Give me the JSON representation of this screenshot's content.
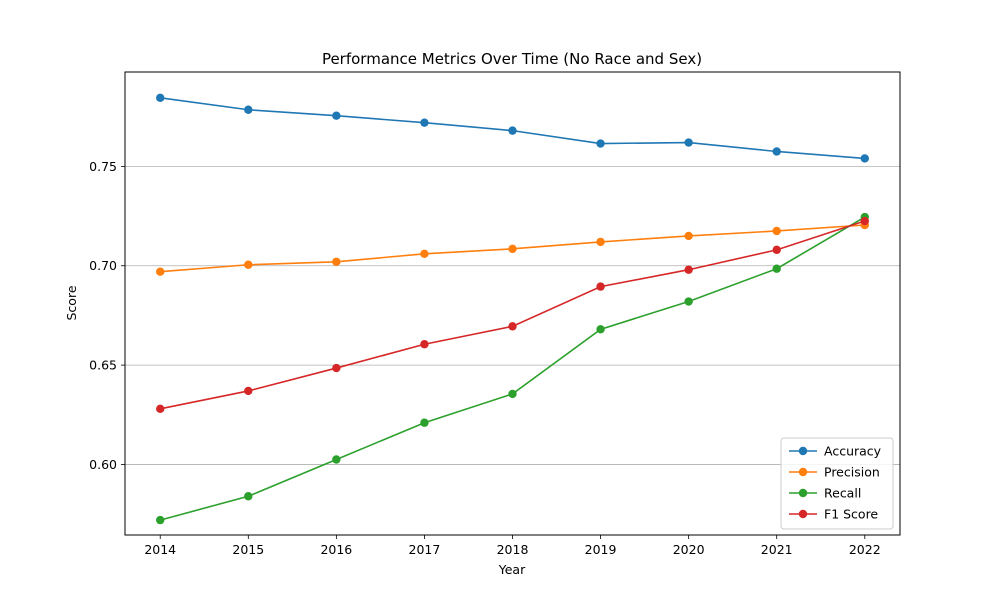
{
  "chart_data": {
    "type": "line",
    "title": "Performance Metrics Over Time (No Race and Sex)",
    "xlabel": "Year",
    "ylabel": "Score",
    "x": [
      2014,
      2015,
      2016,
      2017,
      2018,
      2019,
      2020,
      2021,
      2022
    ],
    "x_tick_labels": [
      "2014",
      "2015",
      "2016",
      "2017",
      "2018",
      "2019",
      "2020",
      "2021",
      "2022"
    ],
    "y_ticks": [
      0.6,
      0.65,
      0.7,
      0.75
    ],
    "y_tick_labels": [
      "0.60",
      "0.65",
      "0.70",
      "0.75"
    ],
    "ylim": [
      0.5645,
      0.7975
    ],
    "xlim": [
      2013.6,
      2022.4
    ],
    "grid": "y-major",
    "legend_position": "lower right",
    "series": [
      {
        "name": "Accuracy",
        "color": "#1f77b4",
        "values": [
          0.7845,
          0.7785,
          0.7755,
          0.772,
          0.768,
          0.7615,
          0.762,
          0.7575,
          0.754
        ]
      },
      {
        "name": "Precision",
        "color": "#ff7f0e",
        "values": [
          0.697,
          0.7005,
          0.702,
          0.706,
          0.7085,
          0.712,
          0.715,
          0.7175,
          0.7205
        ]
      },
      {
        "name": "Recall",
        "color": "#2ca02c",
        "values": [
          0.572,
          0.584,
          0.6025,
          0.621,
          0.6355,
          0.668,
          0.682,
          0.6985,
          0.7245
        ]
      },
      {
        "name": "F1 Score",
        "color": "#d62728",
        "values": [
          0.628,
          0.637,
          0.6485,
          0.6605,
          0.6695,
          0.6895,
          0.698,
          0.708,
          0.7225
        ]
      }
    ]
  }
}
